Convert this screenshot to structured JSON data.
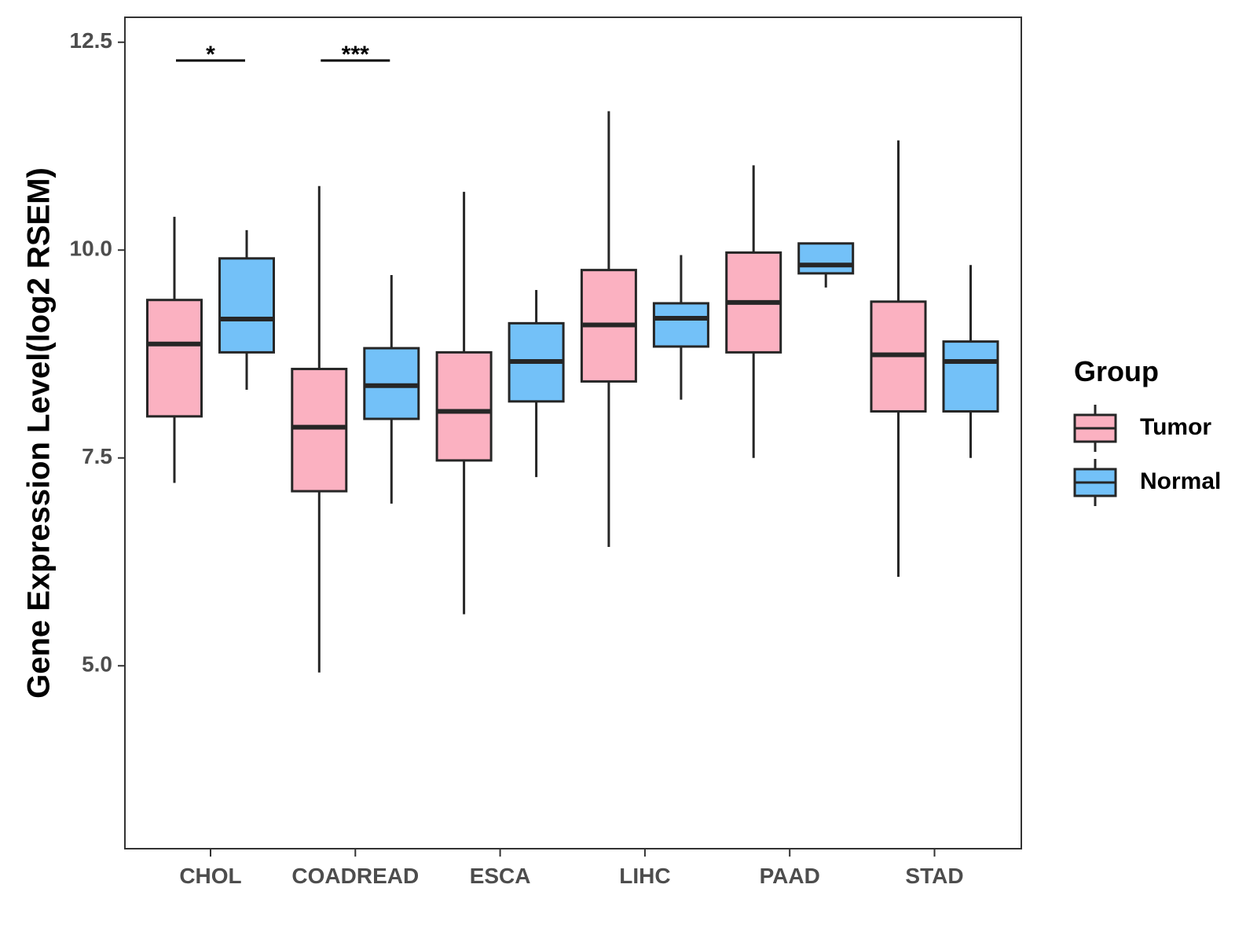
{
  "chart_data": {
    "type": "boxplot",
    "title": "",
    "xlabel": "",
    "ylabel": "Gene Expression Level(log2 RSEM)",
    "ylim": [
      2.8,
      12.8
    ],
    "yticks": [
      5.0,
      7.5,
      10.0,
      12.5
    ],
    "ytick_labels": [
      "5.0",
      "7.5",
      "10.0",
      "12.5"
    ],
    "categories": [
      "CHOL",
      "COADREAD",
      "ESCA",
      "LIHC",
      "PAAD",
      "STAD"
    ],
    "legend": {
      "title": "Group",
      "position": "right",
      "entries": [
        {
          "name": "Tumor",
          "color": "#FBB1C1"
        },
        {
          "name": "Normal",
          "color": "#73C1F8"
        }
      ]
    },
    "series": [
      {
        "name": "Tumor",
        "color": "#FBB1C1",
        "boxes": [
          {
            "category": "CHOL",
            "min": 7.2,
            "q1": 8.0,
            "median": 8.87,
            "q3": 9.4,
            "max": 10.4
          },
          {
            "category": "COADREAD",
            "min": 4.92,
            "q1": 7.1,
            "median": 7.87,
            "q3": 8.57,
            "max": 10.77
          },
          {
            "category": "ESCA",
            "min": 5.62,
            "q1": 7.47,
            "median": 8.06,
            "q3": 8.77,
            "max": 10.7
          },
          {
            "category": "LIHC",
            "min": 6.43,
            "q1": 8.42,
            "median": 9.1,
            "q3": 9.76,
            "max": 11.67
          },
          {
            "category": "PAAD",
            "min": 7.5,
            "q1": 8.77,
            "median": 9.37,
            "q3": 9.97,
            "max": 11.02
          },
          {
            "category": "STAD",
            "min": 6.07,
            "q1": 8.06,
            "median": 8.74,
            "q3": 9.38,
            "max": 11.32
          }
        ]
      },
      {
        "name": "Normal",
        "color": "#73C1F8",
        "boxes": [
          {
            "category": "CHOL",
            "min": 8.32,
            "q1": 8.77,
            "median": 9.17,
            "q3": 9.9,
            "max": 10.24
          },
          {
            "category": "COADREAD",
            "min": 6.95,
            "q1": 7.97,
            "median": 8.37,
            "q3": 8.82,
            "max": 9.7
          },
          {
            "category": "ESCA",
            "min": 7.27,
            "q1": 8.18,
            "median": 8.66,
            "q3": 9.12,
            "max": 9.52
          },
          {
            "category": "LIHC",
            "min": 8.2,
            "q1": 8.84,
            "median": 9.18,
            "q3": 9.36,
            "max": 9.94
          },
          {
            "category": "PAAD",
            "min": 9.55,
            "q1": 9.72,
            "median": 9.82,
            "q3": 10.08,
            "max": 10.08
          },
          {
            "category": "STAD",
            "min": 7.5,
            "q1": 8.06,
            "median": 8.66,
            "q3": 8.9,
            "max": 9.82
          }
        ]
      }
    ],
    "significance": [
      {
        "category": "CHOL",
        "label": "*",
        "y": 12.28
      },
      {
        "category": "COADREAD",
        "label": "***",
        "y": 12.28
      }
    ]
  }
}
